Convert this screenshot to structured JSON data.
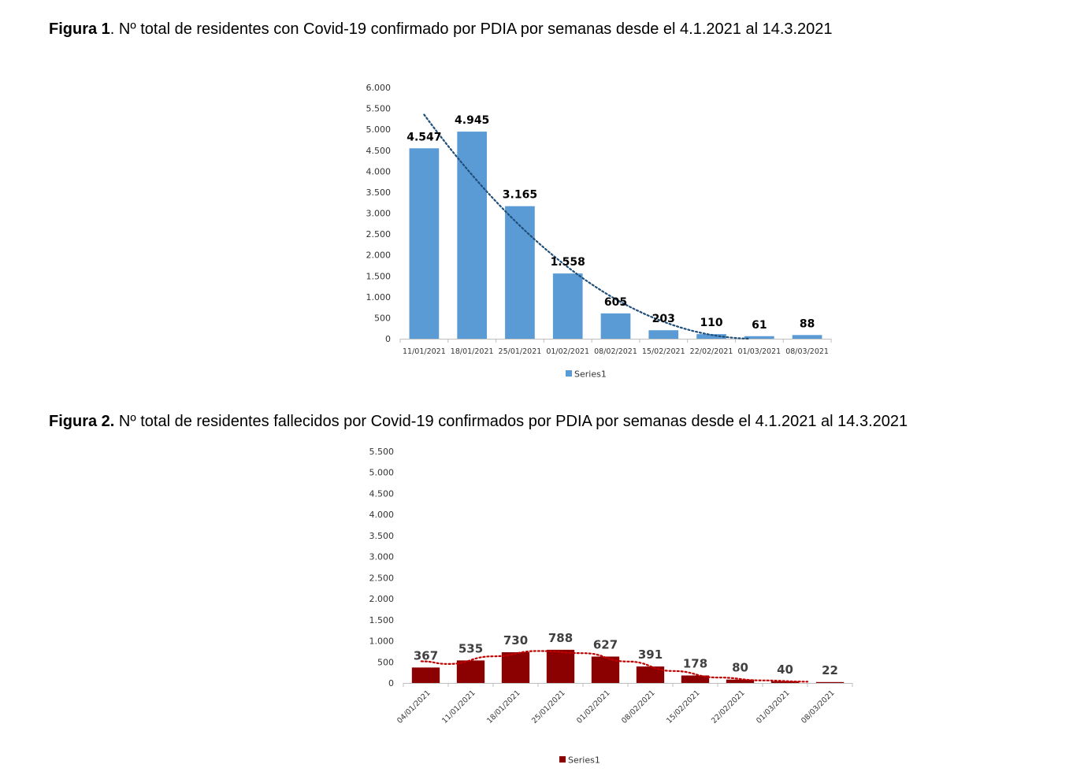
{
  "figures": [
    {
      "title_bold": "Figura 1",
      "title_rest": ". Nº total de residentes con Covid-19 confirmado por PDIA por semanas desde el 4.1.2021 al 14.3.2021"
    },
    {
      "title_bold": "Figura 2.",
      "title_rest": " Nº total de residentes fallecidos por Covid-19 confirmados por PDIA por semanas desde el 4.1.2021 al 14.3.2021"
    }
  ],
  "chart_data": [
    {
      "type": "bar",
      "categories": [
        "11/01/2021",
        "18/01/2021",
        "25/01/2021",
        "01/02/2021",
        "08/02/2021",
        "15/02/2021",
        "22/02/2021",
        "01/03/2021",
        "08/03/2021"
      ],
      "series": [
        {
          "name": "Series1",
          "values": [
            4547,
            4945,
            3165,
            1558,
            605,
            203,
            110,
            61,
            88
          ],
          "labels": [
            "4.547",
            "4.945",
            "3.165",
            "1.558",
            "605",
            "203",
            "110",
            "61",
            "88"
          ],
          "color": "#5b9bd5"
        }
      ],
      "trendline": {
        "style": "dotted",
        "color": "#1f4e79",
        "kind": "polynomial"
      },
      "ylim": [
        0,
        6000
      ],
      "yticks": [
        0,
        500,
        1000,
        1500,
        2000,
        2500,
        3000,
        3500,
        4000,
        4500,
        5000,
        5500,
        6000
      ],
      "ytick_labels": [
        "0",
        "500",
        "1.000",
        "1.500",
        "2.000",
        "2.500",
        "3.000",
        "3.500",
        "4.000",
        "4.500",
        "5.000",
        "5.500",
        "6.000"
      ],
      "legend_position": "bottom",
      "grid": false
    },
    {
      "type": "bar",
      "categories": [
        "04/01/2021",
        "11/01/2021",
        "18/01/2021",
        "25/01/2021",
        "01/02/2021",
        "08/02/2021",
        "15/02/2021",
        "22/02/2021",
        "01/03/2021",
        "08/03/2021"
      ],
      "series": [
        {
          "name": "Series1",
          "values": [
            367,
            535,
            730,
            788,
            627,
            391,
            178,
            80,
            40,
            22
          ],
          "labels": [
            "367",
            "535",
            "730",
            "788",
            "627",
            "391",
            "178",
            "80",
            "40",
            "22"
          ],
          "color": "#8b0000"
        }
      ],
      "trendline": {
        "style": "dotted",
        "color": "#c00000",
        "kind": "moving-average"
      },
      "ylim": [
        0,
        5500
      ],
      "yticks": [
        0,
        500,
        1000,
        1500,
        2000,
        2500,
        3000,
        3500,
        4000,
        4500,
        5000,
        5500
      ],
      "ytick_labels": [
        "0",
        "500",
        "1.000",
        "1.500",
        "2.000",
        "2.500",
        "3.000",
        "3.500",
        "4.000",
        "4.500",
        "5.000",
        "5.500"
      ],
      "xtick_rotation": -45,
      "legend_position": "bottom",
      "grid": false
    }
  ]
}
